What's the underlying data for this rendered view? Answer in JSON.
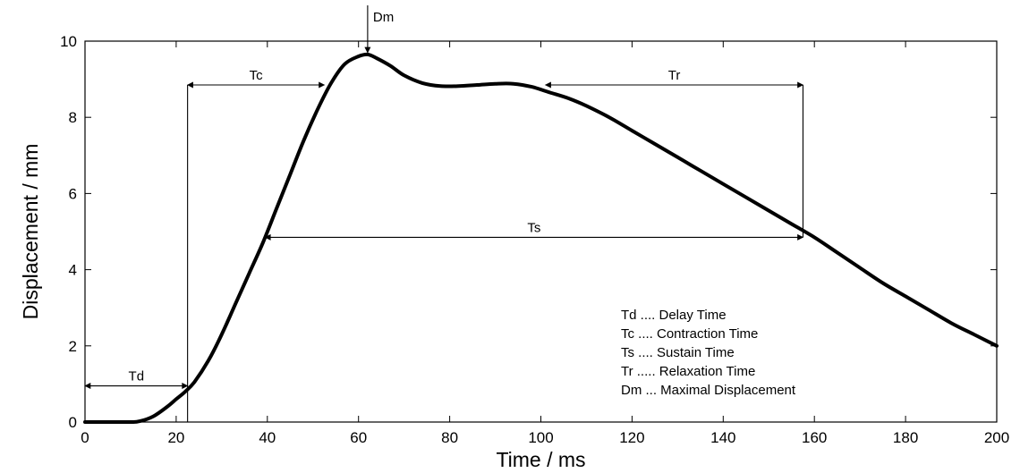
{
  "chart_data": {
    "type": "line",
    "xlabel": "Time / ms",
    "ylabel": "Displacement / mm",
    "xlim": [
      0,
      200
    ],
    "ylim": [
      0,
      10
    ],
    "x_ticks": [
      "0",
      "20",
      "40",
      "60",
      "80",
      "100",
      "120",
      "140",
      "160",
      "180",
      "200"
    ],
    "y_ticks": [
      "0",
      "2",
      "4",
      "6",
      "8",
      "10"
    ],
    "grid": false,
    "series": [
      {
        "color": "#000000",
        "x": [
          0,
          5,
          10,
          12,
          15,
          18,
          20,
          22,
          24,
          27,
          30,
          33,
          36,
          39,
          42,
          45,
          48,
          51,
          54,
          57,
          60,
          62,
          64,
          67,
          70,
          74,
          78,
          82,
          86,
          90,
          94,
          98,
          102,
          106,
          110,
          115,
          120,
          125,
          130,
          135,
          140,
          145,
          150,
          155,
          160,
          165,
          170,
          175,
          180,
          185,
          190,
          195,
          200
        ],
        "y": [
          0,
          0,
          0,
          0.02,
          0.15,
          0.4,
          0.6,
          0.8,
          1.05,
          1.6,
          2.3,
          3.1,
          3.9,
          4.7,
          5.6,
          6.5,
          7.4,
          8.2,
          8.9,
          9.4,
          9.6,
          9.65,
          9.55,
          9.35,
          9.1,
          8.9,
          8.82,
          8.82,
          8.85,
          8.88,
          8.88,
          8.8,
          8.65,
          8.5,
          8.3,
          8.0,
          7.65,
          7.3,
          6.95,
          6.6,
          6.25,
          5.9,
          5.55,
          5.2,
          4.85,
          4.45,
          4.05,
          3.65,
          3.3,
          2.95,
          2.6,
          2.3,
          2.0
        ]
      }
    ],
    "annotations": {
      "td": {
        "label": "Td",
        "x_start": 0,
        "x_end": 22.5,
        "y": 0.95,
        "boundary_x": 22.5,
        "boundary_y_top": 8.85
      },
      "tc": {
        "label": "Tc",
        "x_start": 22.5,
        "x_end": 52.5,
        "y": 8.85
      },
      "ts": {
        "label": "Ts",
        "x_start": 39.5,
        "x_end": 157.5,
        "y": 4.85
      },
      "tr": {
        "label": "Tr",
        "x_start": 101,
        "x_end": 157.5,
        "y": 8.85,
        "boundary_x": 157.5,
        "boundary_y_bottom": 4.85
      },
      "dm": {
        "label": "Dm",
        "x": 62,
        "y": 9.65
      }
    },
    "legend": [
      "Td .... Delay Time",
      "Tc .... Contraction Time",
      "Ts .... Sustain Time",
      "Tr ..... Relaxation Time",
      "Dm ... Maximal Displacement"
    ],
    "legend_placement": "bottom-right"
  }
}
